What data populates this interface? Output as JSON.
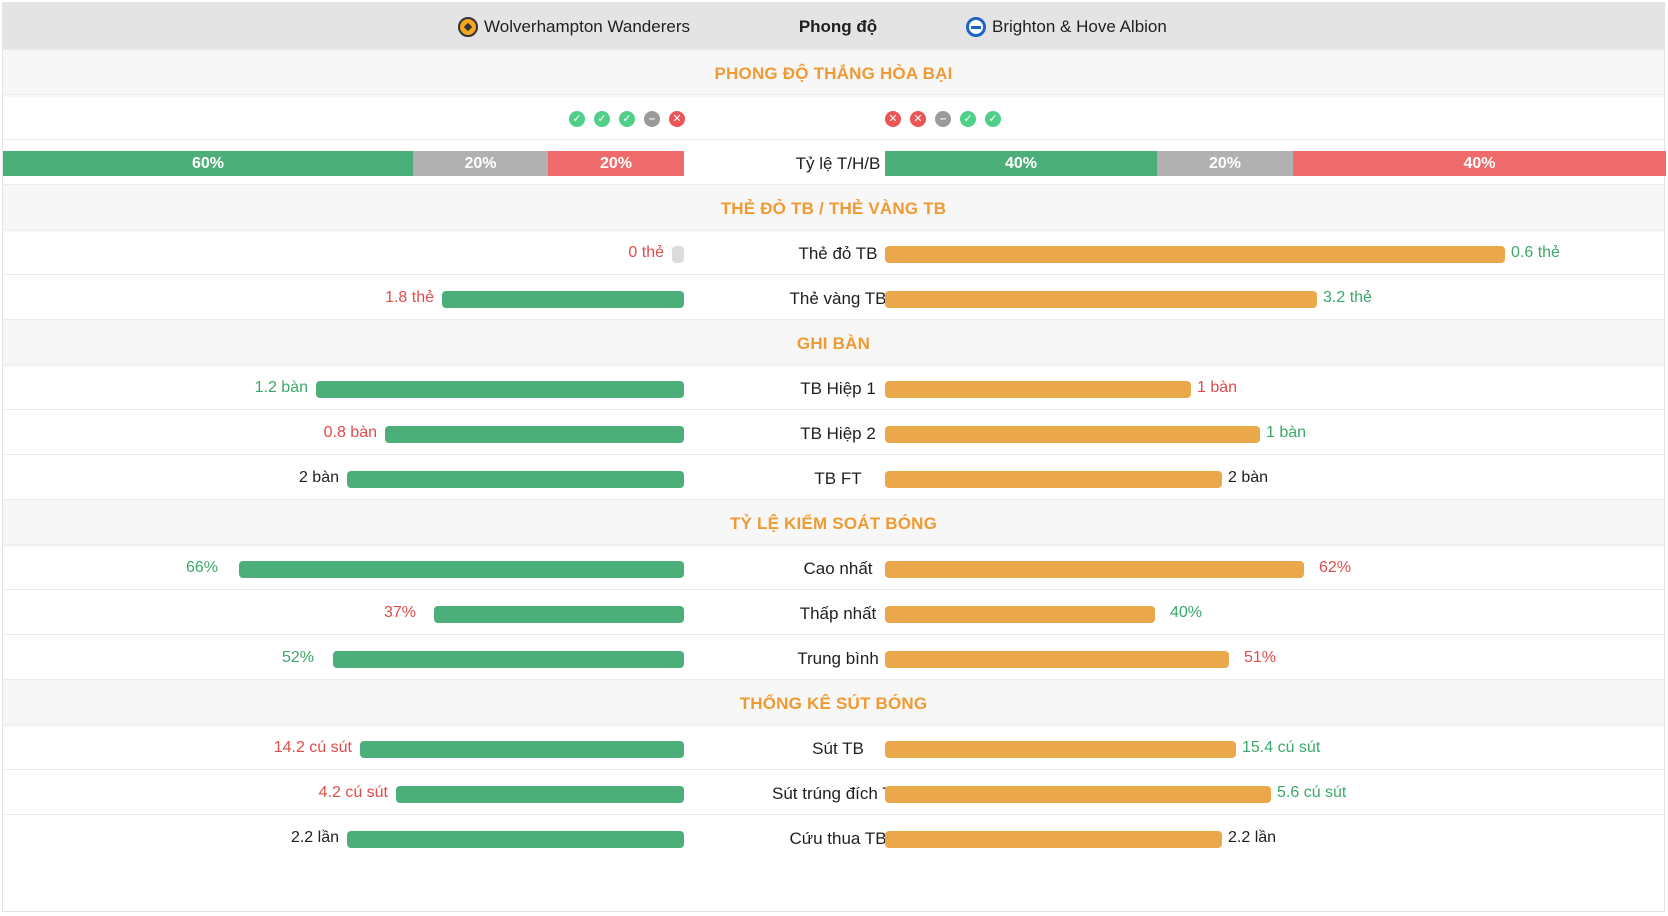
{
  "header": {
    "home_team": "Wolverhampton Wanderers",
    "middle": "Phong độ",
    "away_team": "Brighton & Hove Albion"
  },
  "sections": {
    "form": "PHONG ĐỘ THẮNG HÒA BẠI",
    "cards": "THẺ ĐỎ TB / THẺ VÀNG TB",
    "goals": "GHI BÀN",
    "possession": "TỶ LỆ KIỂM SOÁT BÓNG",
    "shots": "THỐNG KÊ SÚT BÓNG"
  },
  "form": {
    "home": [
      "win",
      "win",
      "win",
      "draw",
      "loss"
    ],
    "away": [
      "loss",
      "loss",
      "draw",
      "win",
      "win"
    ]
  },
  "whl": {
    "label": "Tỷ lệ T/H/B",
    "home": {
      "win": "60%",
      "draw": "20%",
      "loss": "20%"
    },
    "away": {
      "win": "40%",
      "draw": "20%",
      "loss": "40%"
    }
  },
  "stats": {
    "red": {
      "label": "Thẻ đỏ TB",
      "home": "0 thẻ",
      "away": "0.6 thẻ",
      "home_frac": 0.0,
      "away_frac": 1.0
    },
    "yellow": {
      "label": "Thẻ vàng TB",
      "home": "1.8 thẻ",
      "away": "3.2 thẻ",
      "home_frac": 0.36,
      "away_frac": 0.64
    },
    "h1": {
      "label": "TB Hiệp 1",
      "home": "1.2 bàn",
      "away": "1 bàn",
      "home_frac": 0.545,
      "away_frac": 0.455
    },
    "h2": {
      "label": "TB Hiệp 2",
      "home": "0.8 bàn",
      "away": "1 bàn",
      "home_frac": 0.444,
      "away_frac": 0.556
    },
    "ft": {
      "label": "TB FT",
      "home": "2 bàn",
      "away": "2 bàn",
      "home_frac": 0.5,
      "away_frac": 0.5
    },
    "poss_max": {
      "label": "Cao nhất",
      "home": "66%",
      "away": "62%",
      "home_frac": 0.66,
      "away_frac": 0.62
    },
    "poss_min": {
      "label": "Thấp nhất",
      "home": "37%",
      "away": "40%",
      "home_frac": 0.37,
      "away_frac": 0.4
    },
    "poss_avg": {
      "label": "Trung bình",
      "home": "52%",
      "away": "51%",
      "home_frac": 0.52,
      "away_frac": 0.51
    },
    "shots": {
      "label": "Sút TB",
      "home": "14.2 cú sút",
      "away": "15.4 cú sút",
      "home_frac": 0.48,
      "away_frac": 0.52
    },
    "on_target": {
      "label": "Sút trúng đích TB",
      "home": "4.2 cú sút",
      "away": "5.6 cú sút",
      "home_frac": 0.43,
      "away_frac": 0.57
    },
    "saves": {
      "label": "Cứu thua TB",
      "home": "2.2 lần",
      "away": "2.2 lần",
      "home_frac": 0.5,
      "away_frac": 0.5
    }
  },
  "colors": {
    "home_bar": "#4caf7a",
    "away_bar": "#eba84b",
    "better": "#3aa86a",
    "worse": "#e04b4b",
    "section_title": "#ef9a33"
  }
}
